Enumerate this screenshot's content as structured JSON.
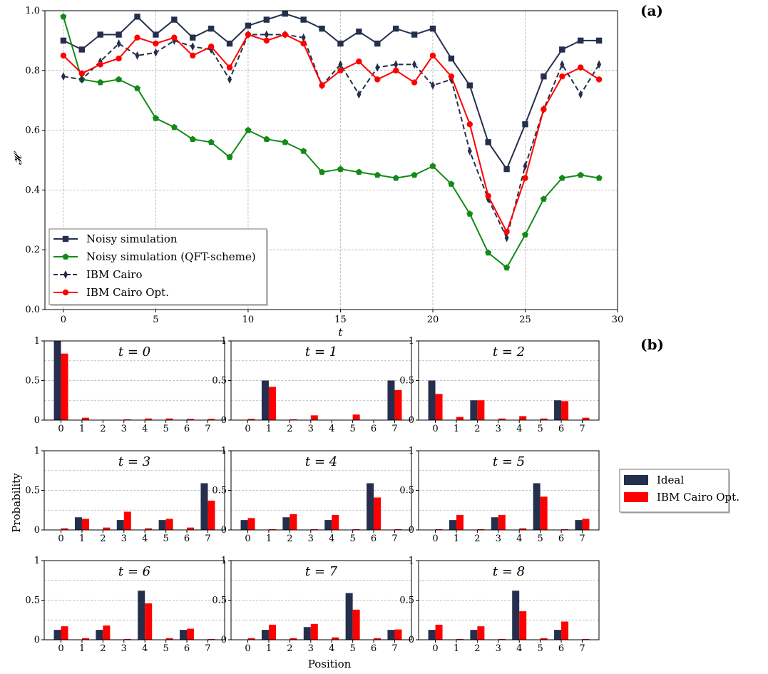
{
  "figure": {
    "panel_a_label": "(a)",
    "panel_b_label": "(b)"
  },
  "chart_data": [
    {
      "type": "line",
      "xlabel": "t",
      "ylabel": "𝓗",
      "xlim": [
        -1,
        30
      ],
      "ylim": [
        0,
        1
      ],
      "xticks": [
        0,
        5,
        10,
        15,
        20,
        25,
        30
      ],
      "yticks": [
        0.0,
        0.2,
        0.4,
        0.6,
        0.8,
        1.0
      ],
      "grid": true,
      "legend_position": "bottom-left",
      "x": [
        0,
        1,
        2,
        3,
        4,
        5,
        6,
        7,
        8,
        9,
        10,
        11,
        12,
        13,
        14,
        15,
        16,
        17,
        18,
        19,
        20,
        21,
        22,
        23,
        24,
        25,
        26,
        27,
        28,
        29
      ],
      "series": [
        {
          "name": "Noisy simulation",
          "color": "#252f4d",
          "marker": "square",
          "linestyle": "solid",
          "values": [
            0.9,
            0.87,
            0.92,
            0.92,
            0.98,
            0.92,
            0.97,
            0.91,
            0.94,
            0.89,
            0.95,
            0.97,
            0.99,
            0.97,
            0.94,
            0.89,
            0.93,
            0.89,
            0.94,
            0.92,
            0.94,
            0.84,
            0.75,
            0.56,
            0.47,
            0.62,
            0.78,
            0.87,
            0.9,
            0.9
          ]
        },
        {
          "name": "Noisy simulation (QFT-scheme)",
          "color": "#138a17",
          "marker": "pentagon",
          "linestyle": "solid",
          "values": [
            0.98,
            0.77,
            0.76,
            0.77,
            0.74,
            0.64,
            0.61,
            0.57,
            0.56,
            0.51,
            0.6,
            0.57,
            0.56,
            0.53,
            0.46,
            0.47,
            0.46,
            0.45,
            0.44,
            0.45,
            0.48,
            0.42,
            0.32,
            0.19,
            0.14,
            0.25,
            0.37,
            0.44,
            0.45,
            0.44
          ]
        },
        {
          "name": "IBM Cairo",
          "color": "#252f4d",
          "marker": "thin-diamond",
          "linestyle": "dashed",
          "values": [
            0.78,
            0.77,
            0.83,
            0.89,
            0.85,
            0.86,
            0.9,
            0.88,
            0.87,
            0.77,
            0.92,
            0.92,
            0.92,
            0.91,
            0.75,
            0.82,
            0.72,
            0.81,
            0.82,
            0.82,
            0.75,
            0.77,
            0.53,
            0.37,
            0.24,
            0.48,
            0.67,
            0.82,
            0.72,
            0.82
          ]
        },
        {
          "name": "IBM Cairo Opt.",
          "color": "#ff0000",
          "marker": "circle",
          "linestyle": "solid",
          "values": [
            0.85,
            0.79,
            0.82,
            0.84,
            0.91,
            0.89,
            0.91,
            0.85,
            0.88,
            0.81,
            0.92,
            0.9,
            0.92,
            0.89,
            0.75,
            0.8,
            0.83,
            0.77,
            0.8,
            0.76,
            0.85,
            0.78,
            0.62,
            0.38,
            0.26,
            0.44,
            0.67,
            0.78,
            0.81,
            0.77
          ]
        }
      ]
    },
    {
      "type": "bar",
      "grid_of": "3x3 small multiples",
      "xlabel": "Position",
      "ylabel": "Probability",
      "ylim": [
        0,
        1
      ],
      "yticks": [
        "0",
        "0.5",
        "1"
      ],
      "categories": [
        "0",
        "1",
        "2",
        "3",
        "4",
        "5",
        "6",
        "7"
      ],
      "legend_position": "right",
      "series_names": [
        "Ideal",
        "IBM Cairo Opt."
      ],
      "series_colors": [
        "#252f4d",
        "#ff0000"
      ],
      "panels": [
        {
          "title": "t = 0",
          "ideal": [
            1,
            0,
            0,
            0,
            0,
            0,
            0,
            0
          ],
          "opt": [
            0.84,
            0.03,
            0.005,
            0.01,
            0.02,
            0.02,
            0.015,
            0.015
          ]
        },
        {
          "title": "t = 1",
          "ideal": [
            0,
            0.5,
            0,
            0,
            0,
            0,
            0,
            0.5
          ],
          "opt": [
            0.015,
            0.42,
            0.01,
            0.06,
            0.005,
            0.07,
            0.005,
            0.38
          ]
        },
        {
          "title": "t = 2",
          "ideal": [
            0.5,
            0,
            0.25,
            0,
            0,
            0,
            0.25,
            0
          ],
          "opt": [
            0.33,
            0.04,
            0.25,
            0.02,
            0.05,
            0.02,
            0.24,
            0.03
          ]
        },
        {
          "title": "t = 3",
          "ideal": [
            0,
            0.16,
            0,
            0.125,
            0,
            0.125,
            0,
            0.59
          ],
          "opt": [
            0.02,
            0.14,
            0.03,
            0.23,
            0.02,
            0.14,
            0.03,
            0.37
          ]
        },
        {
          "title": "t = 4",
          "ideal": [
            0.125,
            0,
            0.16,
            0,
            0.125,
            0,
            0.59,
            0
          ],
          "opt": [
            0.15,
            0.01,
            0.2,
            0.01,
            0.19,
            0.01,
            0.41,
            0.01
          ]
        },
        {
          "title": "t = 5",
          "ideal": [
            0,
            0.125,
            0,
            0.16,
            0,
            0.59,
            0,
            0.125
          ],
          "opt": [
            0.01,
            0.19,
            0.01,
            0.19,
            0.02,
            0.42,
            0.01,
            0.14
          ]
        },
        {
          "title": "t = 6",
          "ideal": [
            0.125,
            0,
            0.125,
            0,
            0.62,
            0,
            0.125,
            0
          ],
          "opt": [
            0.17,
            0.02,
            0.18,
            0.01,
            0.46,
            0.02,
            0.14,
            0.01
          ]
        },
        {
          "title": "t = 7",
          "ideal": [
            0,
            0.125,
            0,
            0.16,
            0,
            0.59,
            0,
            0.125
          ],
          "opt": [
            0.02,
            0.19,
            0.02,
            0.2,
            0.03,
            0.38,
            0.02,
            0.13
          ]
        },
        {
          "title": "t = 8",
          "ideal": [
            0.125,
            0,
            0.125,
            0,
            0.62,
            0,
            0.125,
            0
          ],
          "opt": [
            0.19,
            0.01,
            0.17,
            0.01,
            0.36,
            0.02,
            0.23,
            0.01
          ]
        }
      ]
    }
  ]
}
